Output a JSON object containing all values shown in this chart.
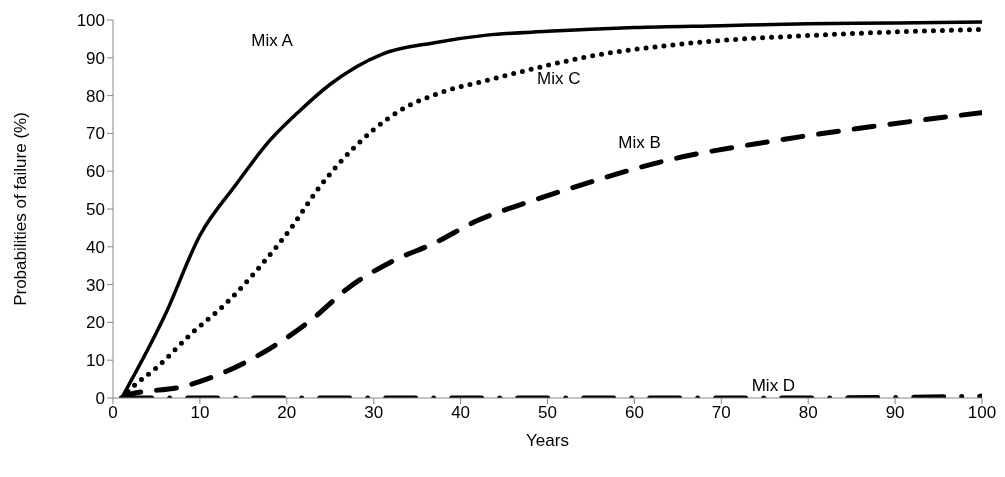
{
  "chart_data": {
    "type": "line",
    "xlabel": "Years",
    "ylabel": "Probabilities of failure (%)",
    "xlim": [
      0,
      100
    ],
    "xticks": [
      0,
      10,
      20,
      30,
      40,
      50,
      60,
      70,
      80,
      90,
      100
    ],
    "ylim": [
      0,
      100
    ],
    "yticks": [
      0,
      10,
      20,
      30,
      40,
      50,
      60,
      70,
      80,
      90,
      100
    ],
    "grid": false,
    "marker": "none",
    "series": [
      {
        "name": "Mix A",
        "color": "#000000",
        "line_style": "solid",
        "x": [
          1,
          6,
          10,
          14,
          18,
          21.5,
          25,
          31,
          37,
          43,
          50,
          60,
          70,
          80,
          90,
          100
        ],
        "values": [
          0,
          22,
          43,
          56,
          68,
          76,
          83,
          91,
          94,
          96,
          97,
          98,
          98.5,
          99,
          99.2,
          99.5
        ]
      },
      {
        "name": "Mix C",
        "color": "#000000",
        "line_style": "dotted",
        "x": [
          1,
          2.3,
          5,
          9,
          13,
          17,
          20.5,
          23.5,
          26,
          30,
          33,
          38,
          43,
          50,
          54,
          67,
          81,
          100
        ],
        "values": [
          0,
          3,
          8,
          17,
          25,
          35,
          45,
          55,
          62,
          71,
          76,
          81,
          84,
          88,
          90,
          94,
          96,
          97.5
        ]
      },
      {
        "name": "Mix B",
        "color": "#000000",
        "line_style": "dashed",
        "x": [
          1,
          2,
          8,
          13,
          18,
          23,
          27,
          32,
          37,
          42,
          48,
          52,
          64,
          76,
          88,
          100
        ],
        "values": [
          0,
          1,
          3,
          7,
          13,
          21,
          29,
          36,
          41,
          47,
          52,
          55,
          63,
          68,
          72,
          75.5
        ]
      },
      {
        "name": "Mix D",
        "color": "#000000",
        "line_style": "dashdot",
        "x": [
          1,
          20,
          50,
          80,
          100
        ],
        "values": [
          0,
          0,
          0,
          0,
          0.5
        ]
      }
    ]
  }
}
